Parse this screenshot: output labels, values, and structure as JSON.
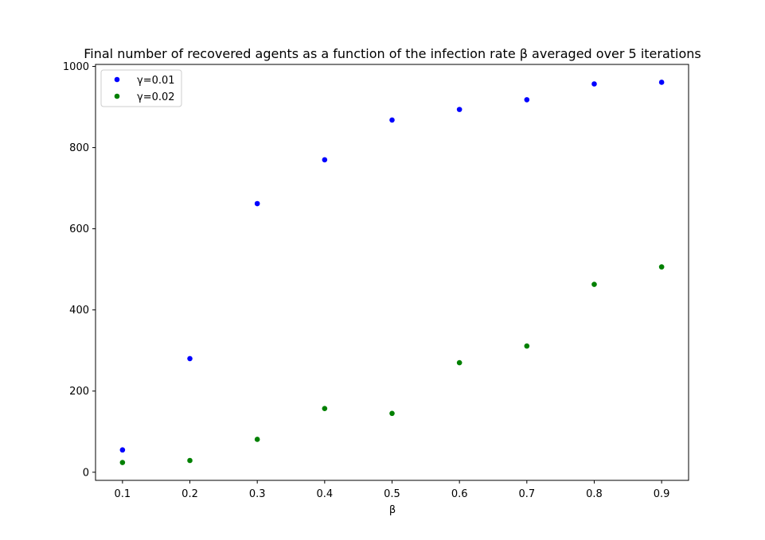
{
  "chart_data": {
    "type": "scatter",
    "title": "Final number of recovered agents as a function of the infection rate β averaged over 5 iterations",
    "xlabel": "β",
    "ylabel": "",
    "xlim": [
      0.06,
      0.94
    ],
    "ylim": [
      -20,
      1005
    ],
    "xticks": [
      0.1,
      0.2,
      0.3,
      0.4,
      0.5,
      0.6,
      0.7,
      0.8,
      0.9
    ],
    "xtick_labels": [
      "0.1",
      "0.2",
      "0.3",
      "0.4",
      "0.5",
      "0.6",
      "0.7",
      "0.8",
      "0.9"
    ],
    "yticks": [
      0,
      200,
      400,
      600,
      800,
      1000
    ],
    "ytick_labels": [
      "0",
      "200",
      "400",
      "600",
      "800",
      "1000"
    ],
    "grid": false,
    "legend_position": "top-left",
    "series": [
      {
        "name": "γ=0.01",
        "color": "#0000ff",
        "x": [
          0.1,
          0.2,
          0.3,
          0.4,
          0.5,
          0.6,
          0.7,
          0.8,
          0.9
        ],
        "y": [
          55,
          280,
          662,
          770,
          868,
          894,
          918,
          957,
          961
        ]
      },
      {
        "name": "γ=0.02",
        "color": "#008000",
        "x": [
          0.1,
          0.2,
          0.3,
          0.4,
          0.5,
          0.6,
          0.7,
          0.8,
          0.9
        ],
        "y": [
          24,
          29,
          81,
          157,
          145,
          270,
          311,
          463,
          506
        ]
      }
    ]
  }
}
